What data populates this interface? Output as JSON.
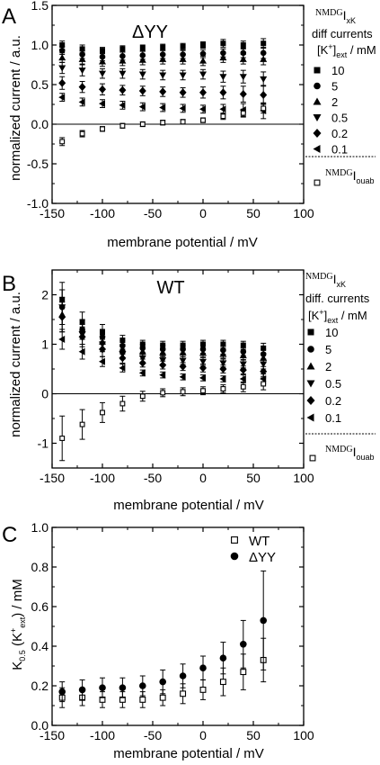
{
  "chart_data": [
    {
      "panel_label": "A",
      "title": "ΔYY",
      "type": "scatter",
      "xlabel": "membrane potential / mV",
      "ylabel": "normalized current / a.u.",
      "xlim": [
        -150,
        100
      ],
      "ylim": [
        -1.0,
        1.5
      ],
      "xticks": [
        -150,
        -100,
        -50,
        0,
        50,
        100
      ],
      "yticks": [
        "-1.0",
        "-0.5",
        "0.0",
        "0.5",
        "1.0",
        "1.5"
      ],
      "zero_line": true,
      "legend": {
        "placement": "right",
        "header_main": "I",
        "header_super": "NMDG",
        "header_sub": "xK",
        "header_line2": "diff currents",
        "unit_prefix": "[K",
        "unit_sup": "+",
        "unit_bracket": "]",
        "unit_sub": "ext",
        "unit_suffix": " / mM",
        "footer_main": "I",
        "footer_super": "NMDG",
        "footer_sub": "ouab"
      },
      "x": [
        -140,
        -120,
        -100,
        -80,
        -60,
        -40,
        -20,
        0,
        20,
        40,
        60
      ],
      "series": [
        {
          "name": "10",
          "marker": "square",
          "values": [
            1.0,
            0.95,
            0.93,
            0.95,
            0.96,
            0.97,
            0.98,
            1.0,
            1.02,
            1.0,
            1.02
          ],
          "err": [
            0.05,
            0.05,
            0.04,
            0.04,
            0.04,
            0.04,
            0.04,
            0.04,
            0.05,
            0.05,
            0.06
          ]
        },
        {
          "name": "5",
          "marker": "circle",
          "values": [
            0.93,
            0.88,
            0.85,
            0.86,
            0.87,
            0.88,
            0.88,
            0.89,
            0.9,
            0.9,
            0.9
          ],
          "err": [
            0.05,
            0.05,
            0.05,
            0.05,
            0.05,
            0.05,
            0.05,
            0.05,
            0.05,
            0.06,
            0.07
          ]
        },
        {
          "name": "2",
          "marker": "triangle-up",
          "values": [
            0.84,
            0.82,
            0.79,
            0.8,
            0.81,
            0.82,
            0.82,
            0.8,
            0.84,
            0.82,
            0.82
          ],
          "err": [
            0.06,
            0.06,
            0.06,
            0.06,
            0.06,
            0.06,
            0.06,
            0.06,
            0.06,
            0.06,
            0.07
          ]
        },
        {
          "name": "0.5",
          "marker": "triangle-down",
          "values": [
            0.71,
            0.68,
            0.64,
            0.64,
            0.63,
            0.62,
            0.62,
            0.63,
            0.6,
            0.6,
            0.57
          ],
          "err": [
            0.07,
            0.07,
            0.06,
            0.06,
            0.06,
            0.06,
            0.06,
            0.06,
            0.07,
            0.08,
            0.09
          ]
        },
        {
          "name": "0.2",
          "marker": "diamond",
          "values": [
            0.52,
            0.47,
            0.44,
            0.43,
            0.42,
            0.41,
            0.4,
            0.4,
            0.4,
            0.38,
            0.37
          ],
          "err": [
            0.08,
            0.07,
            0.07,
            0.06,
            0.06,
            0.06,
            0.06,
            0.07,
            0.08,
            0.1,
            0.12
          ]
        },
        {
          "name": "0.1",
          "marker": "triangle-left",
          "values": [
            0.34,
            0.28,
            0.26,
            0.24,
            0.22,
            0.21,
            0.2,
            0.19,
            0.19,
            0.18,
            0.17
          ],
          "err": [
            0.05,
            0.05,
            0.05,
            0.05,
            0.05,
            0.05,
            0.05,
            0.05,
            0.06,
            0.08,
            0.1
          ]
        },
        {
          "name": "ouab",
          "marker": "open-square",
          "values": [
            -0.22,
            -0.12,
            -0.06,
            -0.02,
            0.0,
            0.02,
            0.03,
            0.05,
            0.1,
            0.14,
            0.2
          ],
          "err": [
            0.05,
            0.04,
            0.03,
            0.03,
            0.03,
            0.03,
            0.03,
            0.03,
            0.04,
            0.05,
            0.06
          ]
        }
      ]
    },
    {
      "panel_label": "B",
      "title": "WT",
      "type": "scatter",
      "xlabel": "membrane potential / mV",
      "ylabel": "normalized current / a.u.",
      "xlim": [
        -150,
        100
      ],
      "ylim": [
        -1.5,
        2.5
      ],
      "xticks": [
        -150,
        -100,
        -50,
        0,
        50,
        100
      ],
      "yticks": [
        "-1",
        "0",
        "1",
        "2"
      ],
      "zero_line": true,
      "legend": {
        "placement": "right",
        "header_main": "I",
        "header_super": "NMDG",
        "header_sub": "xK",
        "header_line2": "diff. currents",
        "unit_prefix": "[K",
        "unit_sup": "+",
        "unit_bracket": "]",
        "unit_sub": "ext",
        "unit_suffix": " / mM",
        "footer_main": "I",
        "footer_super": "NMDG",
        "footer_sub": "ouab"
      },
      "x": [
        -140,
        -120,
        -100,
        -80,
        -60,
        -40,
        -20,
        0,
        20,
        40,
        60
      ],
      "series": [
        {
          "name": "10",
          "marker": "square",
          "values": [
            1.9,
            1.45,
            1.25,
            1.08,
            1.0,
            0.98,
            0.98,
            1.0,
            1.0,
            0.98,
            0.92
          ],
          "err": [
            0.35,
            0.2,
            0.15,
            0.1,
            0.08,
            0.08,
            0.08,
            0.08,
            0.08,
            0.08,
            0.1
          ]
        },
        {
          "name": "5",
          "marker": "circle",
          "values": [
            1.75,
            1.3,
            1.15,
            0.97,
            0.92,
            0.9,
            0.9,
            0.9,
            0.88,
            0.85,
            0.8
          ],
          "err": [
            0.35,
            0.2,
            0.15,
            0.1,
            0.08,
            0.08,
            0.08,
            0.08,
            0.08,
            0.08,
            0.1
          ]
        },
        {
          "name": "2",
          "marker": "triangle-up",
          "values": [
            1.6,
            1.3,
            1.05,
            0.9,
            0.85,
            0.83,
            0.83,
            0.82,
            0.8,
            0.77,
            0.72
          ],
          "err": [
            0.35,
            0.2,
            0.15,
            0.1,
            0.08,
            0.08,
            0.08,
            0.08,
            0.08,
            0.08,
            0.1
          ]
        },
        {
          "name": "0.5",
          "marker": "triangle-down",
          "values": [
            1.75,
            1.2,
            1.0,
            0.8,
            0.72,
            0.68,
            0.67,
            0.65,
            0.62,
            0.6,
            0.6
          ],
          "err": [
            0.35,
            0.2,
            0.15,
            0.1,
            0.08,
            0.08,
            0.08,
            0.08,
            0.08,
            0.08,
            0.1
          ]
        },
        {
          "name": "0.2",
          "marker": "diamond",
          "values": [
            1.55,
            1.15,
            0.9,
            0.72,
            0.62,
            0.58,
            0.55,
            0.52,
            0.5,
            0.48,
            0.45
          ],
          "err": [
            0.3,
            0.2,
            0.15,
            0.1,
            0.08,
            0.08,
            0.08,
            0.08,
            0.08,
            0.08,
            0.1
          ]
        },
        {
          "name": "0.1",
          "marker": "triangle-left",
          "values": [
            1.1,
            0.85,
            0.65,
            0.52,
            0.42,
            0.38,
            0.34,
            0.32,
            0.3,
            0.3,
            0.3
          ],
          "err": [
            0.2,
            0.15,
            0.1,
            0.08,
            0.06,
            0.06,
            0.06,
            0.06,
            0.06,
            0.08,
            0.1
          ]
        },
        {
          "name": "ouab",
          "marker": "open-square",
          "values": [
            -0.9,
            -0.62,
            -0.38,
            -0.2,
            -0.05,
            0.02,
            0.04,
            0.06,
            0.1,
            0.14,
            0.2
          ],
          "err": [
            0.45,
            0.3,
            0.2,
            0.15,
            0.1,
            0.08,
            0.08,
            0.08,
            0.08,
            0.1,
            0.12
          ]
        }
      ]
    },
    {
      "panel_label": "C",
      "type": "scatter",
      "xlabel": "membrane potential / mV",
      "ylabel_main": "K",
      "ylabel_sub": "0.5",
      "ylabel_open": " (K",
      "ylabel_sup": "+",
      "ylabel_sub2": "ext",
      "ylabel_close": ") / mM",
      "xlim": [
        -150,
        100
      ],
      "ylim": [
        0.0,
        1.0
      ],
      "xticks": [
        -150,
        -100,
        -50,
        0,
        50,
        100
      ],
      "yticks": [
        "0.0",
        "0.2",
        "0.4",
        "0.6",
        "0.8",
        "1.0"
      ],
      "legend": {
        "placement": "top-right"
      },
      "x": [
        -140,
        -120,
        -100,
        -80,
        -60,
        -40,
        -20,
        0,
        20,
        40,
        60
      ],
      "series": [
        {
          "name": "WT",
          "marker": "open-square",
          "values": [
            0.14,
            0.14,
            0.13,
            0.13,
            0.13,
            0.14,
            0.16,
            0.18,
            0.22,
            0.27,
            0.33
          ],
          "err": [
            0.05,
            0.04,
            0.04,
            0.04,
            0.04,
            0.04,
            0.05,
            0.05,
            0.07,
            0.09,
            0.11
          ]
        },
        {
          "name": "ΔYY",
          "marker": "circle",
          "values": [
            0.17,
            0.18,
            0.19,
            0.19,
            0.2,
            0.22,
            0.25,
            0.29,
            0.34,
            0.41,
            0.53
          ],
          "err": [
            0.05,
            0.05,
            0.05,
            0.05,
            0.05,
            0.06,
            0.06,
            0.06,
            0.08,
            0.12,
            0.25
          ]
        }
      ]
    }
  ]
}
